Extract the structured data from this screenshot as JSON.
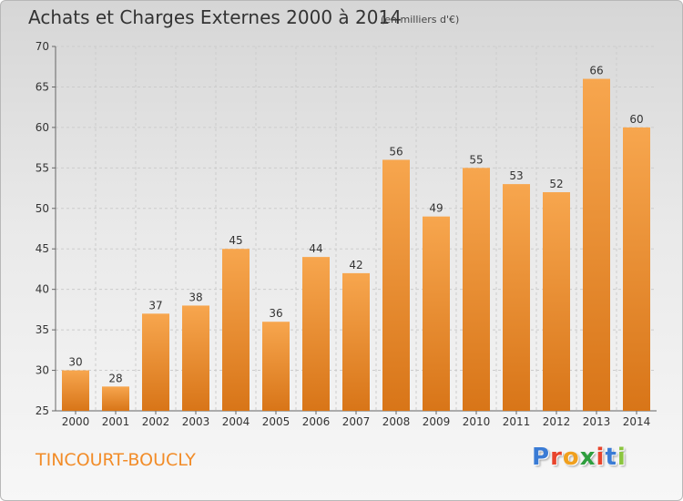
{
  "header": {
    "title": "Achats et Charges Externes 2000 à 2014",
    "subtitle": "(en milliers d'€)"
  },
  "footer": {
    "commune": "TINCOURT-BOUCLY",
    "logo_letters": [
      "P",
      "r",
      "o",
      "x",
      "i",
      "t",
      "i"
    ],
    "logo_colors": [
      "#3a7bd5",
      "#e8442c",
      "#f0a01e",
      "#2e9e3e",
      "#e8442c",
      "#3a7bd5",
      "#8bc53f"
    ]
  },
  "colors": {
    "bar_top": "#f7a64e",
    "bar_bottom": "#d87518",
    "grid": "#cccccc",
    "axis": "#666666"
  },
  "chart_data": {
    "type": "bar",
    "categories": [
      "2000",
      "2001",
      "2002",
      "2003",
      "2004",
      "2005",
      "2006",
      "2007",
      "2008",
      "2009",
      "2010",
      "2011",
      "2012",
      "2013",
      "2014"
    ],
    "values": [
      30,
      28,
      37,
      38,
      45,
      36,
      44,
      42,
      56,
      49,
      55,
      53,
      52,
      66,
      60
    ],
    "ylim": [
      25,
      70
    ],
    "yticks": [
      25,
      30,
      35,
      40,
      45,
      50,
      55,
      60,
      65,
      70
    ],
    "grid": true,
    "title": "Achats et Charges Externes 2000 à 2014"
  }
}
